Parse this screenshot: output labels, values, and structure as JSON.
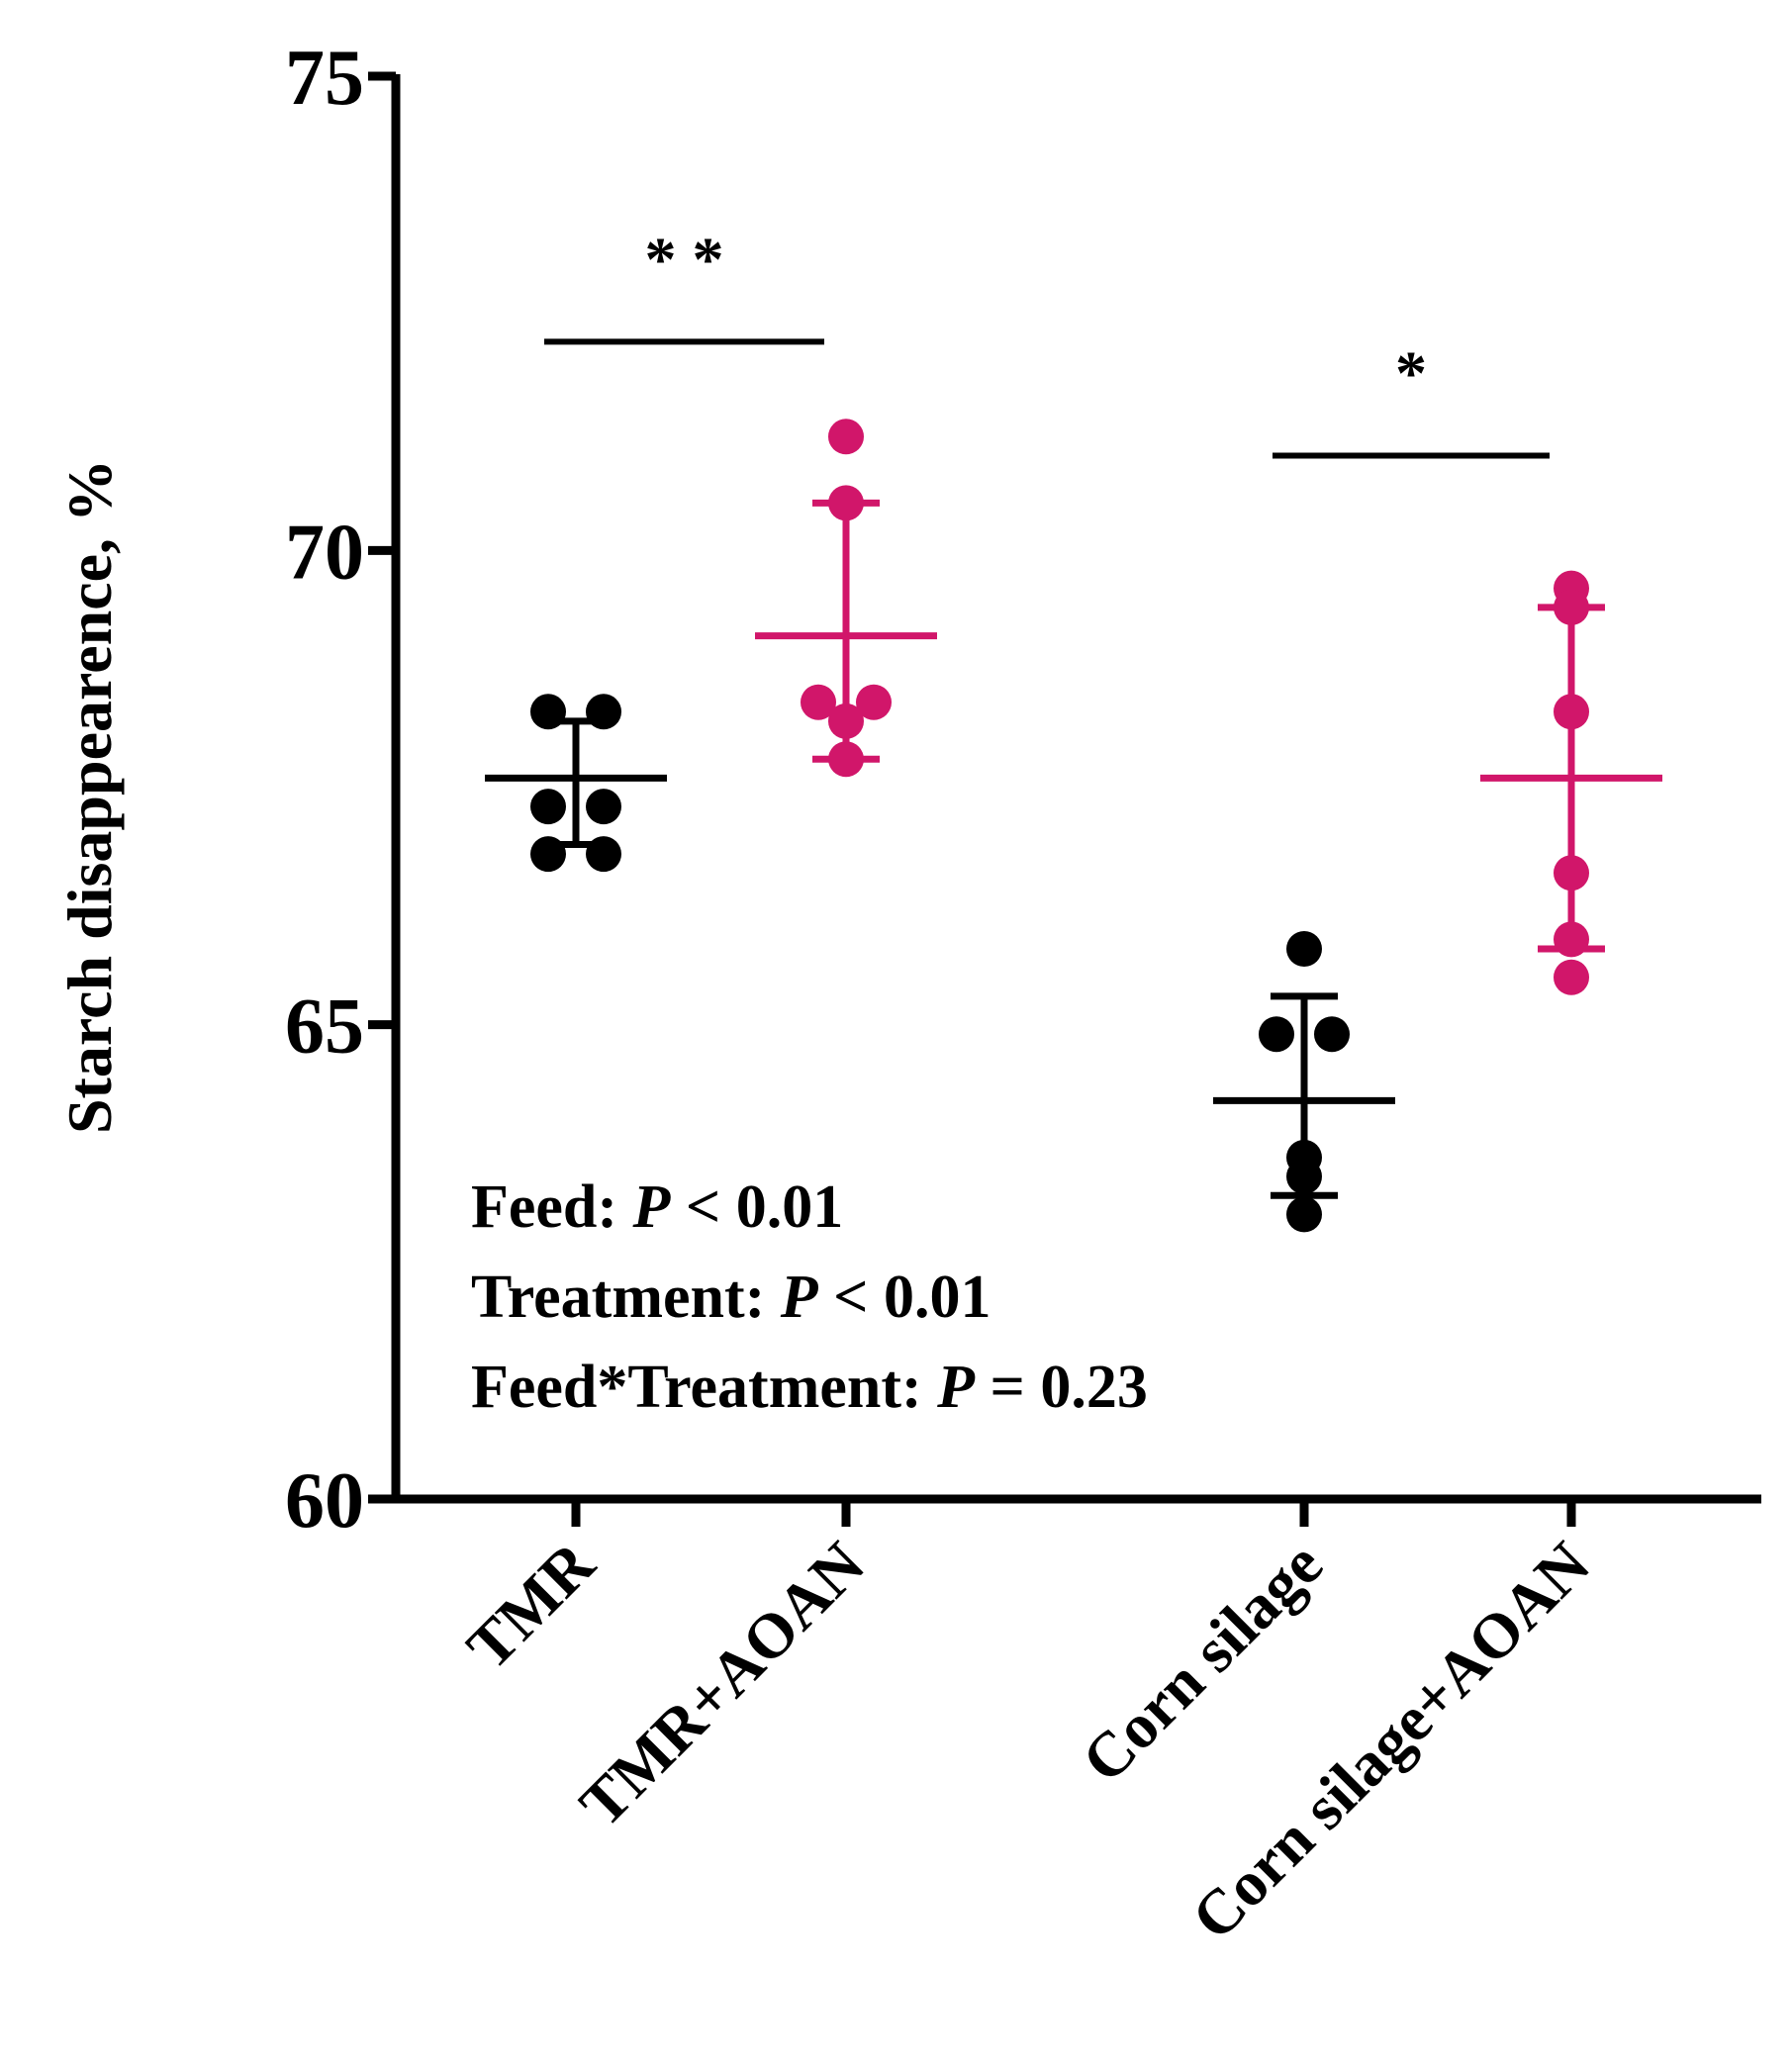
{
  "chart_data": {
    "type": "scatter",
    "ylabel": "Starch disappearence, %",
    "ylim": [
      60,
      75
    ],
    "yticks": [
      "60",
      "65",
      "70",
      "75"
    ],
    "categories": [
      "TMR",
      "TMR+AOAN",
      "Corn silage",
      "Corn silage+AOAN"
    ],
    "groups": [
      {
        "category": "TMR",
        "color": "#000000",
        "points": [
          68.3,
          68.3,
          67.3,
          67.3,
          66.8,
          66.8
        ],
        "mean": 67.6,
        "sd_upper": 68.2,
        "sd_lower": 66.9
      },
      {
        "category": "TMR+AOAN",
        "color": "#d1166a",
        "points": [
          71.2,
          70.5,
          68.4,
          68.4,
          68.2,
          67.8
        ],
        "mean": 69.1,
        "sd_upper": 70.5,
        "sd_lower": 67.8
      },
      {
        "category": "Corn silage",
        "color": "#000000",
        "points": [
          65.8,
          64.9,
          64.9,
          63.6,
          63.4,
          63.0
        ],
        "mean": 64.2,
        "sd_upper": 65.3,
        "sd_lower": 63.2
      },
      {
        "category": "Corn silage+AOAN",
        "color": "#d1166a",
        "points": [
          69.6,
          69.4,
          68.3,
          66.6,
          65.9,
          65.5
        ],
        "mean": 67.6,
        "sd_upper": 69.4,
        "sd_lower": 65.8
      }
    ],
    "significance": [
      {
        "from": "TMR",
        "to": "TMR+AOAN",
        "label": "* *",
        "y": 72.2
      },
      {
        "from": "Corn silage",
        "to": "Corn silage+AOAN",
        "label": "*",
        "y": 71.0
      }
    ],
    "annotations": [
      {
        "prefix": "Feed: ",
        "p": "P",
        "suffix": " < 0.01"
      },
      {
        "prefix": "Treatment: ",
        "p": "P",
        "suffix": " < 0.01"
      },
      {
        "prefix": "Feed*Treatment: ",
        "p": "P",
        "suffix": " = 0.23"
      }
    ]
  }
}
